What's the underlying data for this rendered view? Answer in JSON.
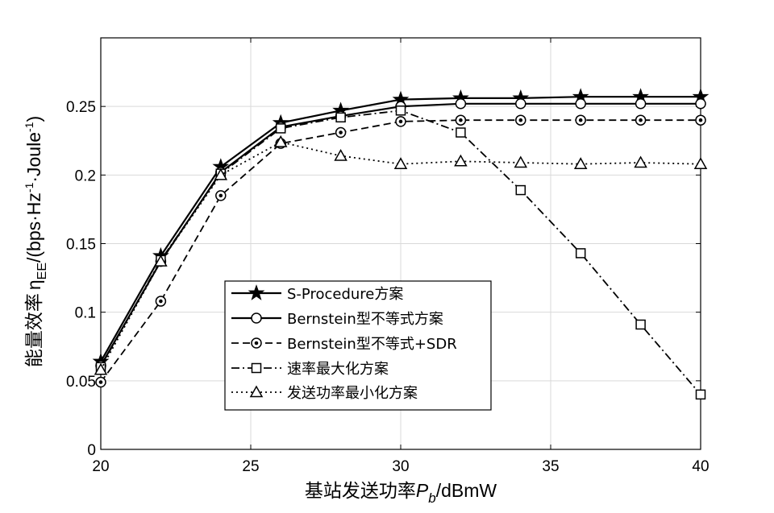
{
  "chart_data": {
    "type": "line",
    "xlabel": "基站发送功率",
    "xlabel_symbol": "P",
    "xlabel_symbol_sub": "b",
    "xlabel_unit": "/dBmW",
    "ylabel": "能量效率",
    "ylabel_symbol": "η",
    "ylabel_symbol_sub": "EE",
    "ylabel_unit": "/(bps·Hz",
    "ylabel_unit_exp1": "-1",
    "ylabel_unit_mid": "·Joule",
    "ylabel_unit_exp2": "-1",
    "ylabel_unit_end": ")",
    "xlim": [
      20,
      40
    ],
    "ylim": [
      0,
      0.3
    ],
    "x_ticks": [
      20,
      25,
      30,
      35,
      40
    ],
    "x_tick_labels": [
      "20",
      "25",
      "30",
      "35",
      "40"
    ],
    "y_ticks": [
      0,
      0.05,
      0.1,
      0.15,
      0.2,
      0.25
    ],
    "y_tick_labels": [
      "0",
      "0.05",
      "0.1",
      "0.15",
      "0.2",
      "0.25"
    ],
    "grid": true,
    "legend_position": "lower-center",
    "x": [
      20,
      22,
      24,
      26,
      28,
      30,
      32,
      34,
      36,
      38,
      40
    ],
    "series": [
      {
        "name": "S-Procedure方案",
        "marker": "star",
        "dash": "solid",
        "values": [
          0.064,
          0.141,
          0.206,
          0.238,
          0.247,
          0.255,
          0.256,
          0.256,
          0.257,
          0.257,
          0.257
        ]
      },
      {
        "name": "Bernstein型不等式方案",
        "marker": "circle",
        "dash": "solid",
        "values": [
          0.061,
          0.137,
          0.202,
          0.235,
          0.243,
          0.25,
          0.252,
          0.252,
          0.252,
          0.252,
          0.252
        ]
      },
      {
        "name": "Bernstein型不等式+SDR",
        "marker": "circle-dot",
        "dash": "dashed",
        "values": [
          0.049,
          0.108,
          0.185,
          0.223,
          0.231,
          0.239,
          0.24,
          0.24,
          0.24,
          0.24,
          0.24
        ]
      },
      {
        "name": "速率最大化方案",
        "marker": "square",
        "dash": "dashdot",
        "values": [
          0.06,
          0.138,
          0.201,
          0.234,
          0.242,
          0.247,
          0.231,
          0.189,
          0.143,
          0.091,
          0.04
        ]
      },
      {
        "name": "发送功率最小化方案",
        "marker": "triangle",
        "dash": "dotted",
        "values": [
          0.058,
          0.137,
          0.2,
          0.224,
          0.214,
          0.208,
          0.21,
          0.209,
          0.208,
          0.209,
          0.208
        ]
      }
    ]
  }
}
